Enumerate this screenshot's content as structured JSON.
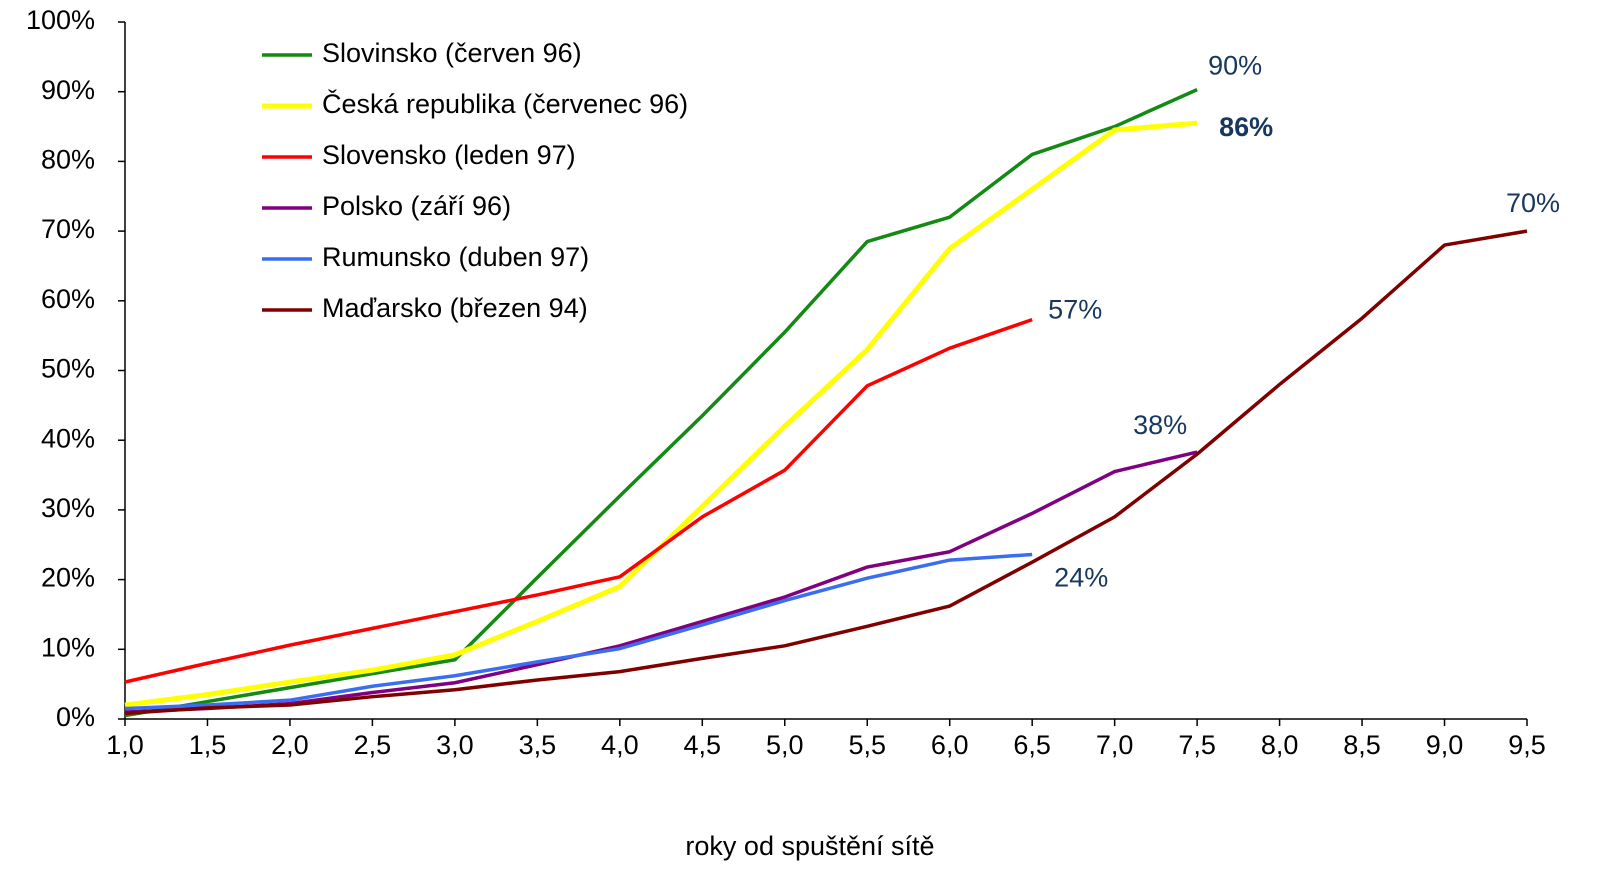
{
  "chart_data": {
    "type": "line",
    "x_label": "roky od spuštění sítě",
    "x": [
      1,
      1.5,
      2,
      2.5,
      3,
      3.5,
      4,
      4.5,
      5,
      5.5,
      6,
      6.5,
      7,
      7.5,
      8,
      8.5,
      9,
      9.5
    ],
    "xlim": [
      1,
      9.5
    ],
    "xticks": [
      {
        "value": 1,
        "label": "1,0"
      },
      {
        "value": 1.5,
        "label": "1,5"
      },
      {
        "value": 2,
        "label": "2,0"
      },
      {
        "value": 2.5,
        "label": "2,5"
      },
      {
        "value": 3,
        "label": "3,0"
      },
      {
        "value": 3.5,
        "label": "3,5"
      },
      {
        "value": 4,
        "label": "4,0"
      },
      {
        "value": 4.5,
        "label": "4,5"
      },
      {
        "value": 5,
        "label": "5,0"
      },
      {
        "value": 5.5,
        "label": "5,5"
      },
      {
        "value": 6,
        "label": "6,0"
      },
      {
        "value": 6.5,
        "label": "6,5"
      },
      {
        "value": 7,
        "label": "7,0"
      },
      {
        "value": 7.5,
        "label": "7,5"
      },
      {
        "value": 8,
        "label": "8,0"
      },
      {
        "value": 8.5,
        "label": "8,5"
      },
      {
        "value": 9,
        "label": "9,0"
      },
      {
        "value": 9.5,
        "label": "9,5"
      }
    ],
    "ylim": [
      0,
      100
    ],
    "yticks": [
      {
        "value": 0,
        "label": "0%"
      },
      {
        "value": 10,
        "label": "10%"
      },
      {
        "value": 20,
        "label": "20%"
      },
      {
        "value": 30,
        "label": "30%"
      },
      {
        "value": 40,
        "label": "40%"
      },
      {
        "value": 50,
        "label": "50%"
      },
      {
        "value": 60,
        "label": "60%"
      },
      {
        "value": 70,
        "label": "70%"
      },
      {
        "value": 80,
        "label": "80%"
      },
      {
        "value": 90,
        "label": "90%"
      },
      {
        "value": 100,
        "label": "100%"
      }
    ],
    "legend": "upper left",
    "series": [
      {
        "name": "Slovinsko (červen 96)",
        "color": "#138a13",
        "end_label": "90%",
        "values": [
          0.5,
          2.5,
          4.5,
          6.5,
          8.5,
          20.3,
          32,
          43.5,
          55.5,
          68.5,
          72,
          81,
          85,
          90.3,
          null,
          null,
          null,
          null
        ]
      },
      {
        "name": "Česká republika (červenec 96)",
        "color": "#ffff00",
        "end_label": "86%",
        "end_label_bold": true,
        "values": [
          2,
          3.5,
          5.3,
          7,
          9.2,
          14,
          19,
          30.5,
          42,
          53,
          67.5,
          76,
          84.5,
          85.5,
          null,
          null,
          null,
          null
        ]
      },
      {
        "name": "Slovensko (leden 97)",
        "color": "#ff0000",
        "end_label": "57%",
        "values": [
          5.3,
          8,
          10.6,
          13,
          15.4,
          17.8,
          20.4,
          29,
          35.7,
          47.8,
          53.2,
          57.3,
          null,
          null,
          null,
          null,
          null,
          null
        ]
      },
      {
        "name": "Polsko (září 96)",
        "color": "#800080",
        "end_label": "38%",
        "values": [
          1,
          1.5,
          2.2,
          3.8,
          5.2,
          7.8,
          10.5,
          14,
          17.5,
          21.8,
          24,
          29.5,
          35.5,
          38.3,
          null,
          null,
          null,
          null
        ]
      },
      {
        "name": "Rumunsko (duben 97)",
        "color": "#3a6df0",
        "end_label": "24%",
        "values": [
          1.5,
          2,
          2.7,
          4.7,
          6.2,
          8.2,
          10.1,
          13.5,
          17,
          20.2,
          22.8,
          23.6,
          null,
          null,
          null,
          null,
          null,
          null
        ]
      },
      {
        "name": "Maďarsko (březen 94)",
        "color": "#800000",
        "end_label": "70%",
        "values": [
          0.8,
          1.6,
          2,
          3.2,
          4.2,
          5.6,
          6.8,
          8.7,
          10.5,
          13.3,
          16.2,
          22.5,
          29,
          38,
          48,
          57.5,
          68,
          70
        ]
      }
    ]
  }
}
